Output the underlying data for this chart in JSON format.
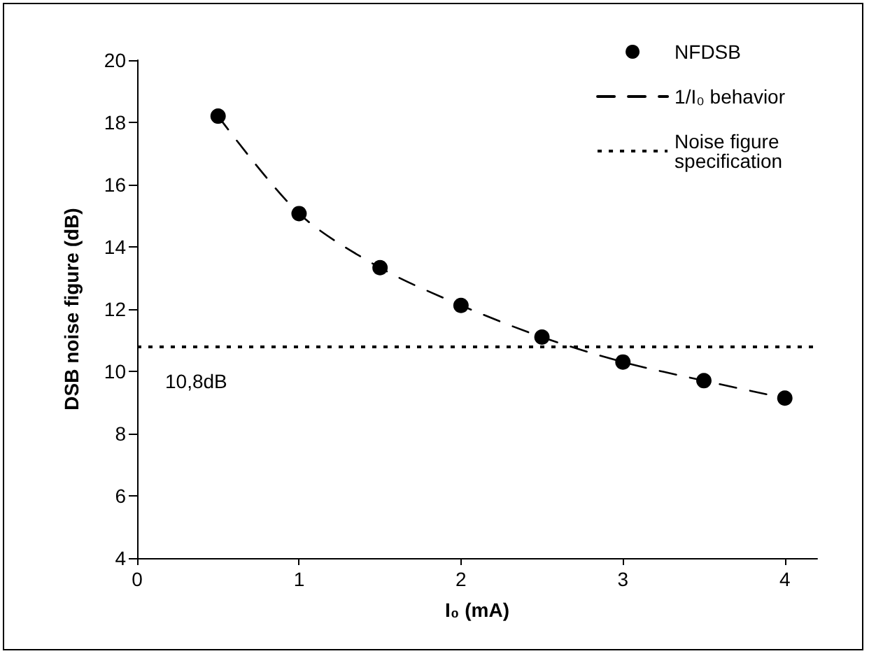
{
  "chart_data": {
    "type": "scatter",
    "xlabel": "I₀ (mA)",
    "ylabel": "DSB noise figure (dB)",
    "xlim": [
      0,
      4.2
    ],
    "xticks": [
      0,
      1,
      2,
      3,
      4
    ],
    "ylim": [
      4,
      20
    ],
    "yticks": [
      4,
      6,
      8,
      10,
      12,
      14,
      16,
      18,
      20
    ],
    "grid": false,
    "legend": "top right",
    "marker": "circle",
    "series": [
      {
        "name": "NFDSB",
        "type": "scatter",
        "color": "#000000",
        "x": [
          0.5,
          1,
          1.5,
          2,
          2.5,
          3,
          3.5,
          4
        ],
        "values": [
          18.2,
          15.07,
          13.33,
          12.12,
          11.1,
          10.3,
          9.7,
          9.14
        ]
      },
      {
        "name": "1/I₀ behavior",
        "type": "line",
        "line_style": "dashed",
        "marker": "none",
        "color": "#000000",
        "x": [
          0.5,
          1,
          1.5,
          2,
          2.5,
          3,
          3.5,
          4
        ],
        "values": [
          18.2,
          15.07,
          13.33,
          12.12,
          11.1,
          10.3,
          9.7,
          9.14
        ]
      }
    ],
    "ref_lines": [
      {
        "axis": "y",
        "value": 10.8,
        "label": "10,8dB",
        "color": "#000000",
        "line_style": "dotted"
      }
    ],
    "annotations": [
      "Noise figure specification"
    ]
  }
}
